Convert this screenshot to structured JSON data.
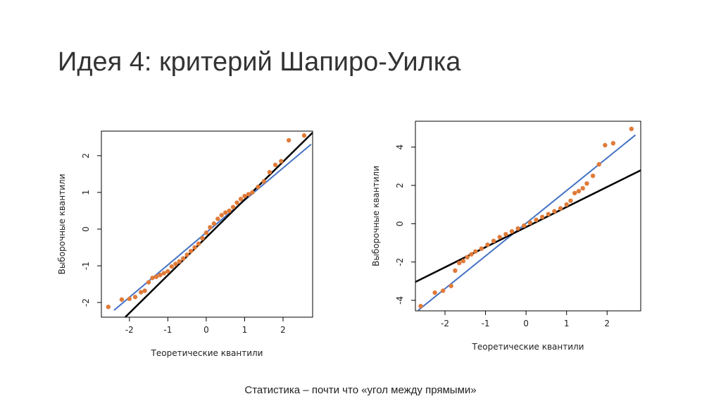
{
  "slide": {
    "title": "Идея 4: критерий Шапиро-Уилка",
    "caption": "Статистика – почти что «угол между прямыми»"
  },
  "chart_data": [
    {
      "type": "scatter",
      "xlabel": "Теоретические квантили",
      "ylabel": "Выборочные квантили",
      "color": "#e07b39",
      "x": [
        -2.55,
        -2.2,
        -2.0,
        -1.85,
        -1.7,
        -1.6,
        -1.5,
        -1.4,
        -1.3,
        -1.2,
        -1.1,
        -1.0,
        -0.9,
        -0.8,
        -0.7,
        -0.6,
        -0.5,
        -0.4,
        -0.3,
        -0.2,
        -0.1,
        0,
        0.1,
        0.2,
        0.3,
        0.4,
        0.5,
        0.6,
        0.7,
        0.8,
        0.9,
        1.0,
        1.1,
        1.2,
        1.35,
        1.5,
        1.65,
        1.8,
        1.95,
        2.15,
        2.55
      ],
      "values": [
        -2.12,
        -1.92,
        -1.9,
        -1.85,
        -1.72,
        -1.68,
        -1.45,
        -1.33,
        -1.3,
        -1.25,
        -1.2,
        -1.15,
        -1.02,
        -0.95,
        -0.88,
        -0.8,
        -0.7,
        -0.6,
        -0.5,
        -0.4,
        -0.25,
        -0.1,
        0.05,
        0.15,
        0.28,
        0.38,
        0.45,
        0.5,
        0.6,
        0.72,
        0.82,
        0.9,
        0.95,
        1.0,
        1.15,
        1.3,
        1.55,
        1.75,
        1.85,
        2.42,
        2.55
      ],
      "lines": [
        {
          "color": "#4472c4",
          "x": [
            -2.4,
            2.73
          ],
          "y": [
            -2.21,
            2.31
          ]
        },
        {
          "color": "#000000",
          "x": [
            -2.11,
            2.77
          ],
          "y": [
            -2.4,
            2.63
          ]
        }
      ],
      "xlim": [
        -2.73,
        2.77
      ],
      "ylim": [
        -2.4,
        2.67
      ],
      "xticks": [
        -2,
        -1,
        0,
        1,
        2
      ],
      "yticks": [
        -2,
        -1,
        0,
        1,
        2
      ]
    },
    {
      "type": "scatter",
      "xlabel": "Теоретические квантили",
      "ylabel": "Выборочные квантили",
      "color": "#e07b39",
      "x": [
        -2.6,
        -2.25,
        -2.05,
        -1.85,
        -1.75,
        -1.65,
        -1.55,
        -1.45,
        -1.35,
        -1.25,
        -1.1,
        -0.95,
        -0.8,
        -0.65,
        -0.5,
        -0.35,
        -0.2,
        -0.05,
        0.1,
        0.25,
        0.4,
        0.55,
        0.7,
        0.85,
        1.0,
        1.1,
        1.2,
        1.3,
        1.4,
        1.5,
        1.65,
        1.8,
        1.95,
        2.15,
        2.6
      ],
      "values": [
        -4.3,
        -3.6,
        -3.5,
        -3.25,
        -2.45,
        -2.05,
        -1.95,
        -1.75,
        -1.6,
        -1.45,
        -1.3,
        -1.1,
        -0.9,
        -0.7,
        -0.55,
        -0.4,
        -0.25,
        -0.1,
        0.05,
        0.2,
        0.35,
        0.5,
        0.65,
        0.8,
        1.0,
        1.2,
        1.6,
        1.7,
        1.85,
        2.1,
        2.5,
        3.1,
        4.1,
        4.2,
        4.95
      ],
      "lines": [
        {
          "color": "#4472c4",
          "x": [
            -2.66,
            2.7
          ],
          "y": [
            -4.52,
            4.63
          ]
        },
        {
          "color": "#000000",
          "x": [
            -2.73,
            2.83
          ],
          "y": [
            -3.04,
            2.79
          ]
        }
      ],
      "xlim": [
        -2.73,
        2.83
      ],
      "ylim": [
        -4.55,
        5.35
      ],
      "xticks": [
        -2,
        -1,
        0,
        1,
        2
      ],
      "yticks": [
        -4,
        -2,
        0,
        2,
        4
      ]
    }
  ]
}
